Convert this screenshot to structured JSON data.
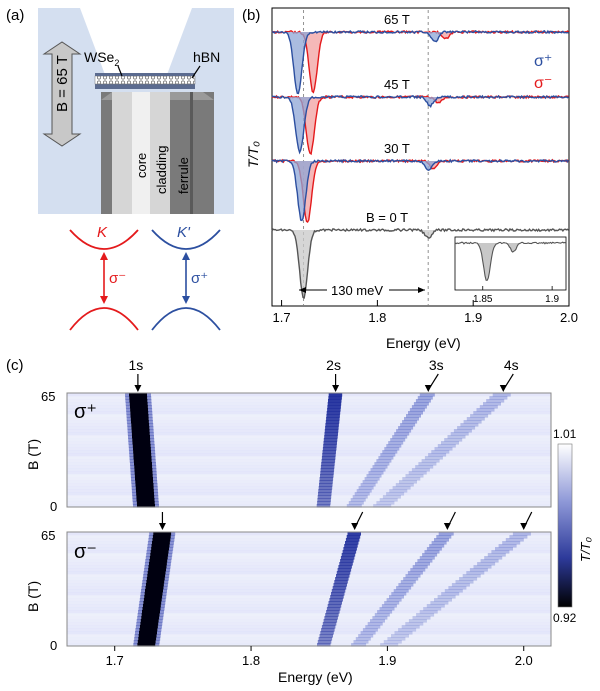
{
  "panel_a": {
    "label": "(a)",
    "field_label": "B = 65 T",
    "material_top": "WSe",
    "material_top_sub": "2",
    "material_right": "hBN",
    "fiber_parts": [
      "core",
      "cladding",
      "ferrule"
    ],
    "valley_left": "K",
    "valley_right": "K'",
    "pol_left": "σ⁻",
    "pol_right": "σ⁺",
    "colors": {
      "left": "#e41a1c",
      "right": "#2c4fa0",
      "bg": "#d4dff0"
    }
  },
  "panel_b": {
    "label": "(b)",
    "ylabel": "T/T₀",
    "xlabel": "Energy (eV)",
    "legend": [
      "σ⁺",
      "σ⁻"
    ],
    "legend_colors": [
      "#2c4fa0",
      "#e41a1c"
    ],
    "annotation": "130 meV",
    "chart_data": {
      "type": "line",
      "xlim": [
        1.69,
        2.0
      ],
      "xticks": [
        "1.7",
        "1.8",
        "1.9",
        "2.0"
      ],
      "traces": [
        {
          "label": "65 T",
          "dip_1s_sigma_plus": 1.717,
          "dip_1s_sigma_minus": 1.733,
          "dip_2s_sigma_plus": 1.86,
          "dip_2s_sigma_minus": 1.871
        },
        {
          "label": "45 T",
          "dip_1s_sigma_plus": 1.719,
          "dip_1s_sigma_minus": 1.73,
          "dip_2s_sigma_plus": 1.855,
          "dip_2s_sigma_minus": 1.864
        },
        {
          "label": "30 T",
          "dip_1s_sigma_plus": 1.721,
          "dip_1s_sigma_minus": 1.727,
          "dip_2s_sigma_plus": 1.853,
          "dip_2s_sigma_minus": 1.858
        },
        {
          "label": "B = 0 T",
          "dip_1s": 1.723,
          "dip_2s": 1.853
        }
      ],
      "inset": {
        "xticks": [
          "1.85",
          "1.9"
        ]
      }
    }
  },
  "panel_c": {
    "label": "(c)",
    "ylabel": "B (T)",
    "xlabel": "Energy (eV)",
    "yticks": [
      "0",
      "65"
    ],
    "xticks": [
      "1.7",
      "1.8",
      "1.9",
      "2.0"
    ],
    "top_pol": "σ⁺",
    "bottom_pol": "σ⁻",
    "states": [
      "1s",
      "2s",
      "3s",
      "4s"
    ],
    "colorbar": {
      "label": "T/T₀",
      "max": "1.01",
      "min": "0.92"
    },
    "chart_data": {
      "type": "heatmap",
      "xlim": [
        1.665,
        2.02
      ],
      "ylim": [
        0,
        65
      ],
      "sigma_plus_lines": [
        {
          "state": "1s",
          "E0": 1.723,
          "E65": 1.717,
          "strength": 1.0,
          "width": 0.006
        },
        {
          "state": "2s",
          "E0": 1.853,
          "E65": 1.862,
          "strength": 0.8,
          "width": 0.0045
        },
        {
          "state": "3s",
          "E0": 1.875,
          "E65": 1.93,
          "strength": 0.35,
          "width": 0.005
        },
        {
          "state": "4s",
          "E0": 1.895,
          "E65": 1.985,
          "strength": 0.2,
          "width": 0.006
        }
      ],
      "sigma_minus_lines": [
        {
          "state": "1s",
          "E0": 1.723,
          "E65": 1.735,
          "strength": 1.0,
          "width": 0.006
        },
        {
          "state": "2s",
          "E0": 1.853,
          "E65": 1.876,
          "strength": 0.75,
          "width": 0.0045
        },
        {
          "state": "3s",
          "E0": 1.878,
          "E65": 1.944,
          "strength": 0.35,
          "width": 0.005
        },
        {
          "state": "4s",
          "E0": 1.9,
          "E65": 2.0,
          "strength": 0.2,
          "width": 0.006
        }
      ]
    }
  }
}
